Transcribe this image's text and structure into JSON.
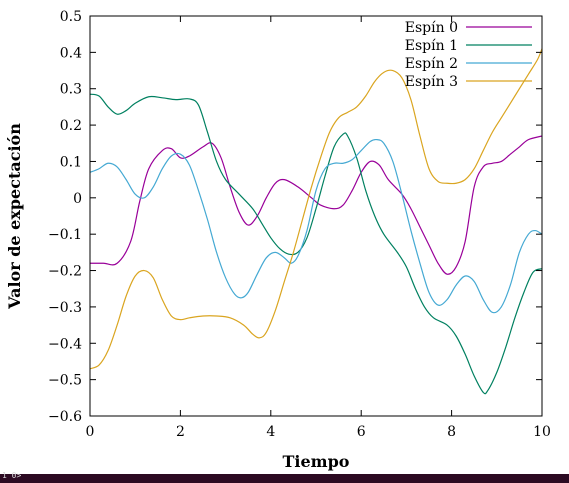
{
  "terminal": {
    "text": "1 0>"
  },
  "chart_data": {
    "type": "line",
    "title": "",
    "xlabel": "Tiempo",
    "ylabel": "Valor de expectación",
    "xlim": [
      0,
      10
    ],
    "ylim": [
      -0.6,
      0.5
    ],
    "xticks": [
      "0",
      "2",
      "4",
      "6",
      "8",
      "10"
    ],
    "yticks": [
      "0.5",
      "0.4",
      "0.3",
      "0.2",
      "0.1",
      "0",
      "−0.1",
      "−0.2",
      "−0.3",
      "−0.4",
      "−0.5",
      "−0.6"
    ],
    "legend_position": "top-right",
    "grid": false,
    "series": [
      {
        "name": "Espín 0",
        "color": "#990099",
        "points": [
          [
            0,
            -0.18
          ],
          [
            0.3,
            -0.18
          ],
          [
            0.6,
            -0.18
          ],
          [
            0.9,
            -0.12
          ],
          [
            1.1,
            -0.01
          ],
          [
            1.3,
            0.08
          ],
          [
            1.6,
            0.13
          ],
          [
            1.8,
            0.135
          ],
          [
            2.0,
            0.11
          ],
          [
            2.2,
            0.115
          ],
          [
            2.5,
            0.14
          ],
          [
            2.7,
            0.15
          ],
          [
            2.9,
            0.11
          ],
          [
            3.1,
            0.03
          ],
          [
            3.3,
            -0.04
          ],
          [
            3.5,
            -0.075
          ],
          [
            3.7,
            -0.05
          ],
          [
            3.9,
            0.0
          ],
          [
            4.1,
            0.04
          ],
          [
            4.3,
            0.05
          ],
          [
            4.6,
            0.03
          ],
          [
            4.9,
            0.0
          ],
          [
            5.1,
            -0.02
          ],
          [
            5.4,
            -0.03
          ],
          [
            5.6,
            -0.02
          ],
          [
            5.8,
            0.02
          ],
          [
            6.0,
            0.07
          ],
          [
            6.2,
            0.1
          ],
          [
            6.4,
            0.09
          ],
          [
            6.6,
            0.05
          ],
          [
            6.9,
            0.01
          ],
          [
            7.1,
            -0.03
          ],
          [
            7.3,
            -0.08
          ],
          [
            7.5,
            -0.13
          ],
          [
            7.7,
            -0.18
          ],
          [
            7.9,
            -0.21
          ],
          [
            8.1,
            -0.19
          ],
          [
            8.3,
            -0.12
          ],
          [
            8.5,
            0.03
          ],
          [
            8.7,
            0.085
          ],
          [
            8.9,
            0.095
          ],
          [
            9.1,
            0.1
          ],
          [
            9.3,
            0.12
          ],
          [
            9.5,
            0.14
          ],
          [
            9.7,
            0.16
          ],
          [
            10.0,
            0.17
          ]
        ]
      },
      {
        "name": "Espín 1",
        "color": "#008060",
        "points": [
          [
            0,
            0.285
          ],
          [
            0.2,
            0.28
          ],
          [
            0.4,
            0.25
          ],
          [
            0.6,
            0.23
          ],
          [
            0.8,
            0.24
          ],
          [
            1.0,
            0.26
          ],
          [
            1.3,
            0.278
          ],
          [
            1.6,
            0.275
          ],
          [
            1.9,
            0.27
          ],
          [
            2.2,
            0.272
          ],
          [
            2.4,
            0.255
          ],
          [
            2.6,
            0.18
          ],
          [
            2.8,
            0.1
          ],
          [
            3.0,
            0.05
          ],
          [
            3.3,
            0.01
          ],
          [
            3.6,
            -0.03
          ],
          [
            3.8,
            -0.07
          ],
          [
            4.0,
            -0.11
          ],
          [
            4.2,
            -0.14
          ],
          [
            4.4,
            -0.155
          ],
          [
            4.6,
            -0.15
          ],
          [
            4.8,
            -0.11
          ],
          [
            5.0,
            -0.03
          ],
          [
            5.2,
            0.06
          ],
          [
            5.4,
            0.14
          ],
          [
            5.6,
            0.175
          ],
          [
            5.7,
            0.17
          ],
          [
            5.9,
            0.11
          ],
          [
            6.1,
            0.02
          ],
          [
            6.3,
            -0.05
          ],
          [
            6.5,
            -0.1
          ],
          [
            6.8,
            -0.15
          ],
          [
            7.0,
            -0.19
          ],
          [
            7.2,
            -0.25
          ],
          [
            7.4,
            -0.3
          ],
          [
            7.6,
            -0.33
          ],
          [
            7.9,
            -0.35
          ],
          [
            8.1,
            -0.38
          ],
          [
            8.3,
            -0.43
          ],
          [
            8.5,
            -0.49
          ],
          [
            8.7,
            -0.535
          ],
          [
            8.8,
            -0.53
          ],
          [
            9.0,
            -0.48
          ],
          [
            9.2,
            -0.41
          ],
          [
            9.4,
            -0.33
          ],
          [
            9.6,
            -0.26
          ],
          [
            9.8,
            -0.205
          ],
          [
            10.0,
            -0.195
          ]
        ]
      },
      {
        "name": "Espín 2",
        "color": "#45a9d3",
        "points": [
          [
            0,
            0.07
          ],
          [
            0.2,
            0.08
          ],
          [
            0.4,
            0.095
          ],
          [
            0.6,
            0.085
          ],
          [
            0.8,
            0.05
          ],
          [
            1.0,
            0.01
          ],
          [
            1.2,
            0.0
          ],
          [
            1.4,
            0.03
          ],
          [
            1.6,
            0.08
          ],
          [
            1.8,
            0.115
          ],
          [
            2.0,
            0.12
          ],
          [
            2.2,
            0.09
          ],
          [
            2.4,
            0.02
          ],
          [
            2.6,
            -0.06
          ],
          [
            2.8,
            -0.15
          ],
          [
            3.0,
            -0.22
          ],
          [
            3.2,
            -0.265
          ],
          [
            3.35,
            -0.275
          ],
          [
            3.5,
            -0.26
          ],
          [
            3.7,
            -0.21
          ],
          [
            3.9,
            -0.165
          ],
          [
            4.1,
            -0.15
          ],
          [
            4.3,
            -0.165
          ],
          [
            4.45,
            -0.18
          ],
          [
            4.6,
            -0.16
          ],
          [
            4.8,
            -0.09
          ],
          [
            5.0,
            0.02
          ],
          [
            5.2,
            0.08
          ],
          [
            5.4,
            0.095
          ],
          [
            5.6,
            0.095
          ],
          [
            5.8,
            0.105
          ],
          [
            6.0,
            0.13
          ],
          [
            6.2,
            0.155
          ],
          [
            6.35,
            0.16
          ],
          [
            6.5,
            0.15
          ],
          [
            6.7,
            0.1
          ],
          [
            6.9,
            0.01
          ],
          [
            7.1,
            -0.09
          ],
          [
            7.3,
            -0.18
          ],
          [
            7.5,
            -0.26
          ],
          [
            7.7,
            -0.295
          ],
          [
            7.9,
            -0.28
          ],
          [
            8.1,
            -0.24
          ],
          [
            8.3,
            -0.215
          ],
          [
            8.5,
            -0.23
          ],
          [
            8.7,
            -0.28
          ],
          [
            8.9,
            -0.315
          ],
          [
            9.1,
            -0.3
          ],
          [
            9.3,
            -0.24
          ],
          [
            9.5,
            -0.15
          ],
          [
            9.7,
            -0.1
          ],
          [
            9.85,
            -0.09
          ],
          [
            10.0,
            -0.1
          ]
        ]
      },
      {
        "name": "Espín 3",
        "color": "#daa520",
        "points": [
          [
            0,
            -0.47
          ],
          [
            0.2,
            -0.46
          ],
          [
            0.4,
            -0.42
          ],
          [
            0.6,
            -0.35
          ],
          [
            0.8,
            -0.27
          ],
          [
            1.0,
            -0.215
          ],
          [
            1.2,
            -0.2
          ],
          [
            1.4,
            -0.22
          ],
          [
            1.6,
            -0.28
          ],
          [
            1.8,
            -0.325
          ],
          [
            2.0,
            -0.335
          ],
          [
            2.2,
            -0.33
          ],
          [
            2.5,
            -0.325
          ],
          [
            2.8,
            -0.325
          ],
          [
            3.1,
            -0.33
          ],
          [
            3.4,
            -0.35
          ],
          [
            3.6,
            -0.375
          ],
          [
            3.75,
            -0.385
          ],
          [
            3.9,
            -0.37
          ],
          [
            4.1,
            -0.31
          ],
          [
            4.3,
            -0.23
          ],
          [
            4.5,
            -0.15
          ],
          [
            4.7,
            -0.06
          ],
          [
            4.9,
            0.03
          ],
          [
            5.1,
            0.11
          ],
          [
            5.3,
            0.18
          ],
          [
            5.5,
            0.22
          ],
          [
            5.7,
            0.235
          ],
          [
            5.9,
            0.25
          ],
          [
            6.1,
            0.28
          ],
          [
            6.3,
            0.32
          ],
          [
            6.5,
            0.345
          ],
          [
            6.7,
            0.35
          ],
          [
            6.9,
            0.33
          ],
          [
            7.1,
            0.27
          ],
          [
            7.3,
            0.17
          ],
          [
            7.5,
            0.08
          ],
          [
            7.7,
            0.045
          ],
          [
            7.9,
            0.04
          ],
          [
            8.1,
            0.04
          ],
          [
            8.3,
            0.05
          ],
          [
            8.5,
            0.08
          ],
          [
            8.7,
            0.13
          ],
          [
            8.9,
            0.18
          ],
          [
            9.1,
            0.22
          ],
          [
            9.3,
            0.26
          ],
          [
            9.5,
            0.3
          ],
          [
            9.7,
            0.34
          ],
          [
            9.9,
            0.38
          ],
          [
            10.0,
            0.41
          ]
        ]
      }
    ]
  }
}
